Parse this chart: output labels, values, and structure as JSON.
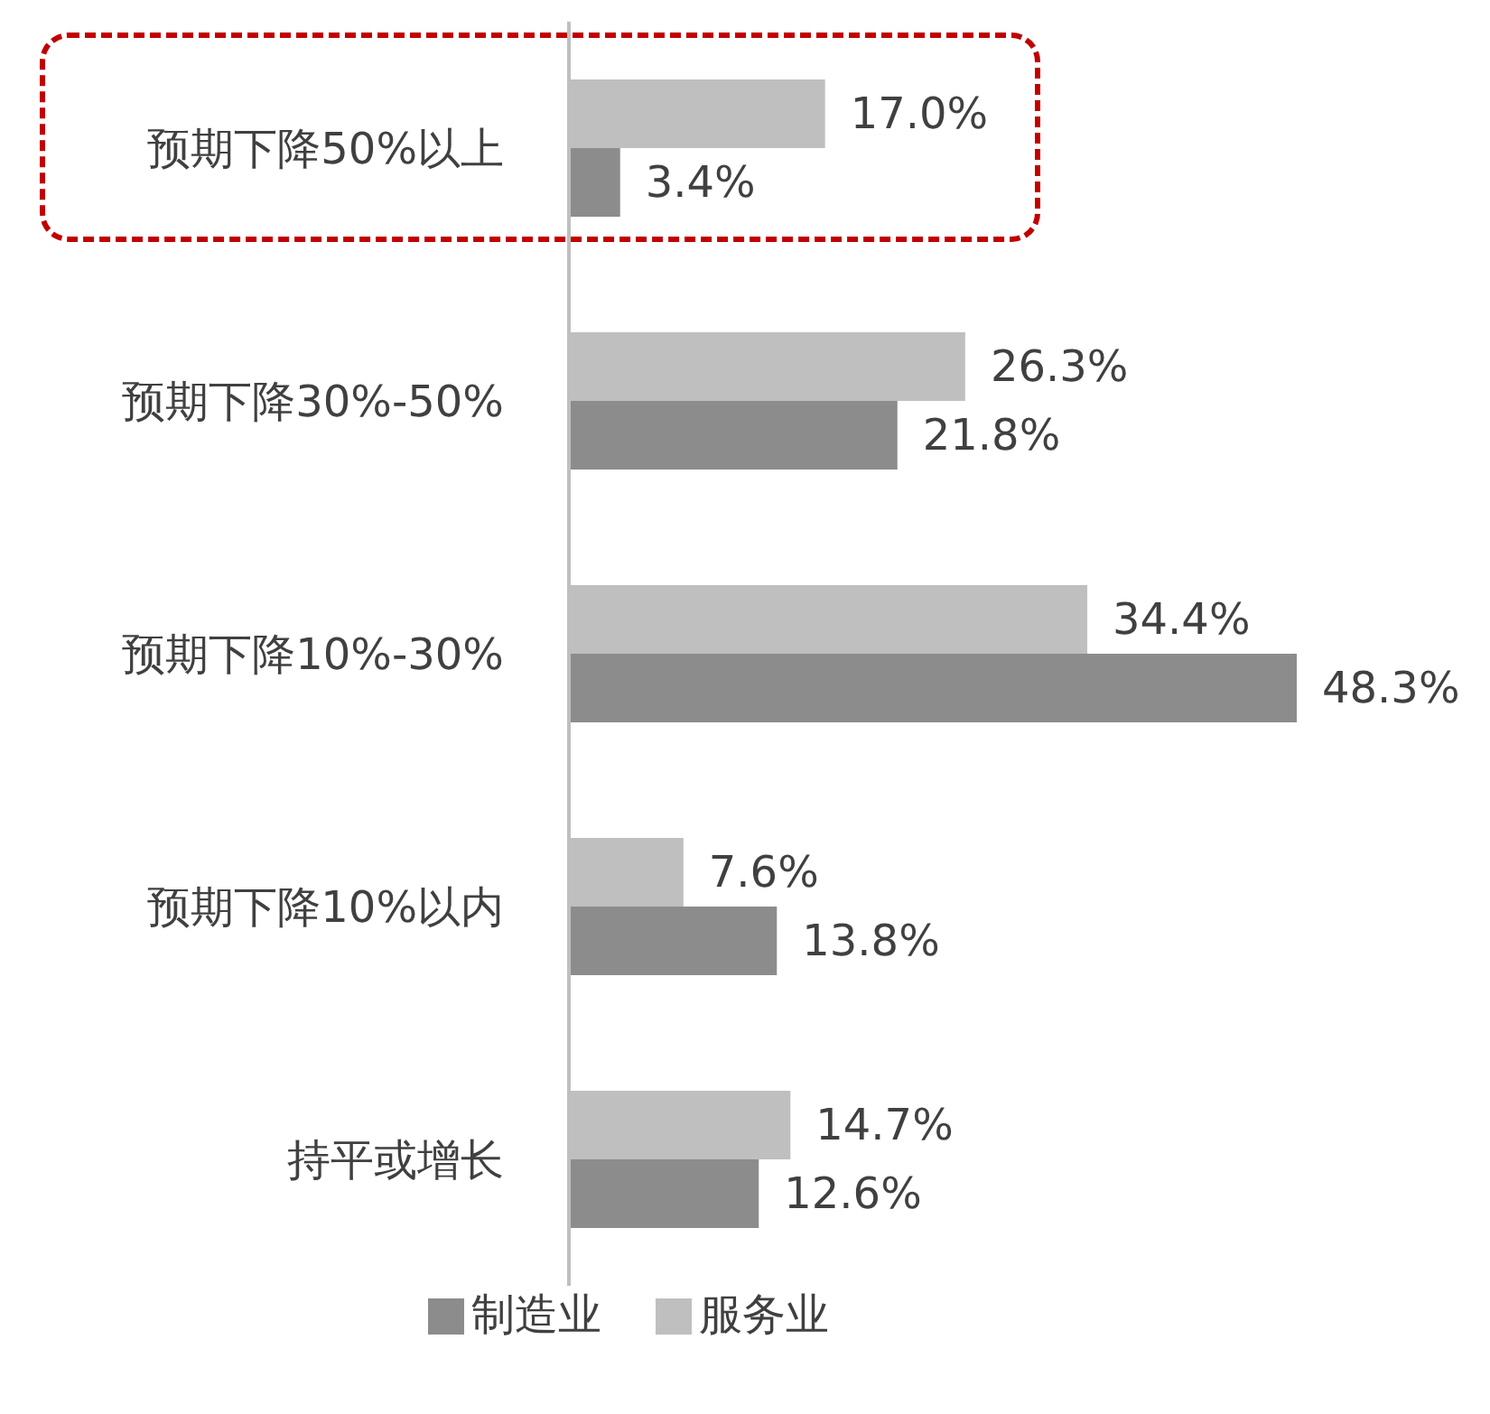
{
  "chart_data": {
    "type": "bar",
    "orientation": "horizontal",
    "categories": [
      "预期下降50%以上",
      "预期下降30%-50%",
      "预期下降10%-30%",
      "预期下降10%以内",
      "持平或增长"
    ],
    "series": [
      {
        "name": "服务业",
        "color": "#bfbfbf",
        "values": [
          17.0,
          26.3,
          34.4,
          7.6,
          14.7
        ],
        "value_labels": [
          "17.0%",
          "26.3%",
          "34.4%",
          "7.6%",
          "14.7%"
        ]
      },
      {
        "name": "制造业",
        "color": "#8c8c8c",
        "values": [
          3.4,
          21.8,
          48.3,
          13.8,
          12.6
        ],
        "value_labels": [
          "3.4%",
          "21.8%",
          "48.3%",
          "13.8%",
          "12.6%"
        ]
      }
    ],
    "legend": "bottom"
  }
}
